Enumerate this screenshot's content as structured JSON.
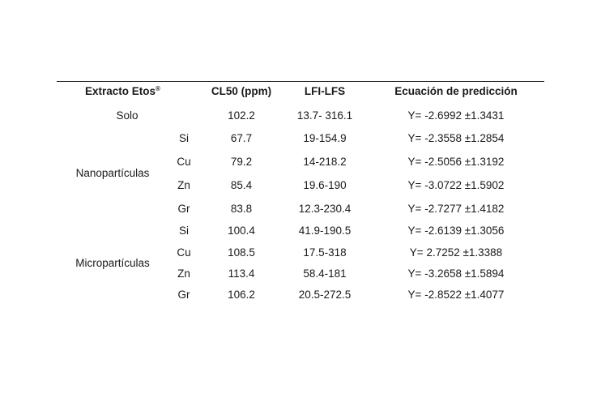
{
  "table": {
    "headers": {
      "extract": "Extracto Etos",
      "extract_sup": "®",
      "cl50": "CL50 (ppm)",
      "lfi": "LFI-LFS",
      "equation": "Ecuación de predicción"
    },
    "groups": {
      "solo": "Solo",
      "nano": "Nanopartículas",
      "micro": "Micropartículas"
    },
    "rows": [
      {
        "sub": "",
        "cl50": "102.2",
        "lfi": "13.7- 316.1",
        "eq": "Y= -2.6992 ±1.3431"
      },
      {
        "sub": "Si",
        "cl50": "67.7",
        "lfi": "19-154.9",
        "eq": "Y= -2.3558 ±1.2854"
      },
      {
        "sub": "Cu",
        "cl50": "79.2",
        "lfi": "14-218.2",
        "eq": "Y= -2.5056 ±1.3192"
      },
      {
        "sub": "Zn",
        "cl50": "85.4",
        "lfi": "19.6-190",
        "eq": "Y= -3.0722 ±1.5902"
      },
      {
        "sub": "Gr",
        "cl50": "83.8",
        "lfi": "12.3-230.4",
        "eq": "Y= -2.7277 ±1.4182"
      },
      {
        "sub": "Si",
        "cl50": "100.4",
        "lfi": "41.9-190.5",
        "eq": "Y= -2.6139 ±1.3056"
      },
      {
        "sub": "Cu",
        "cl50": "108.5",
        "lfi": "17.5-318",
        "eq": "Y= 2.7252 ±1.3388"
      },
      {
        "sub": "Zn",
        "cl50": "113.4",
        "lfi": "58.4-181",
        "eq": "Y= -3.2658 ±1.5894"
      },
      {
        "sub": "Gr",
        "cl50": "106.2",
        "lfi": "20.5-272.5",
        "eq": "Y= -2.8522 ±1.4077"
      }
    ]
  }
}
